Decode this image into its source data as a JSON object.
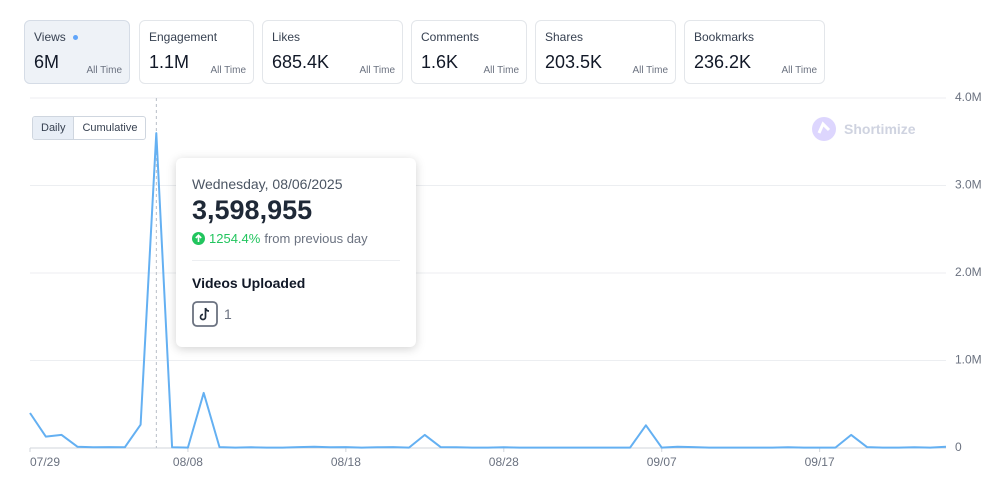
{
  "metric_cards": [
    {
      "label": "Views",
      "value": "6M",
      "period": "All Time"
    },
    {
      "label": "Engagement",
      "value": "1.1M",
      "period": "All Time"
    },
    {
      "label": "Likes",
      "value": "685.4K",
      "period": "All Time"
    },
    {
      "label": "Comments",
      "value": "1.6K",
      "period": "All Time"
    },
    {
      "label": "Shares",
      "value": "203.5K",
      "period": "All Time"
    },
    {
      "label": "Bookmarks",
      "value": "236.2K",
      "period": "All Time"
    }
  ],
  "toggle": {
    "options": [
      "Daily",
      "Cumulative"
    ]
  },
  "watermark": "Shortimize",
  "tooltip": {
    "date": "Wednesday, 08/06/2025",
    "value": "3,598,955",
    "change": "1254.4%",
    "change_text": "from previous day",
    "section_title": "Videos Uploaded",
    "videos_count": "1"
  },
  "chart_data": {
    "type": "line",
    "color": "#64b0f2",
    "grid": true,
    "categories": [
      "07/29",
      null,
      null,
      null,
      null,
      null,
      null,
      null,
      null,
      null,
      "08/08",
      null,
      null,
      null,
      null,
      null,
      null,
      null,
      null,
      null,
      "08/18",
      null,
      null,
      null,
      null,
      null,
      null,
      null,
      null,
      null,
      "08/28",
      null,
      null,
      null,
      null,
      null,
      null,
      null,
      null,
      null,
      "09/07",
      null,
      null,
      null,
      null,
      null,
      null,
      null,
      null,
      null,
      "09/17",
      null,
      null,
      null,
      null,
      null,
      null,
      null,
      null
    ],
    "values": [
      400000,
      130000,
      150000,
      15000,
      8000,
      10000,
      8000,
      265720,
      3598955,
      8000,
      5000,
      630000,
      10000,
      5000,
      8000,
      5000,
      5000,
      10000,
      15000,
      8000,
      10000,
      5000,
      8000,
      10000,
      5000,
      150000,
      10000,
      8000,
      5000,
      5000,
      8000,
      5000,
      5000,
      5000,
      5000,
      5000,
      5000,
      5000,
      5000,
      260000,
      5000,
      15000,
      10000,
      5000,
      5000,
      5000,
      5000,
      5000,
      8000,
      5000,
      5000,
      5000,
      150000,
      10000,
      5000,
      5000,
      8000,
      5000,
      15000
    ],
    "ylim": [
      0,
      4000000
    ],
    "yticks": [
      0,
      {
        "value": 1000000,
        "label": "1.0M"
      },
      {
        "value": 2000000,
        "label": "2.0M"
      },
      {
        "value": 3000000,
        "label": "3.0M"
      },
      {
        "value": 4000000,
        "label": "4.0M"
      }
    ]
  }
}
